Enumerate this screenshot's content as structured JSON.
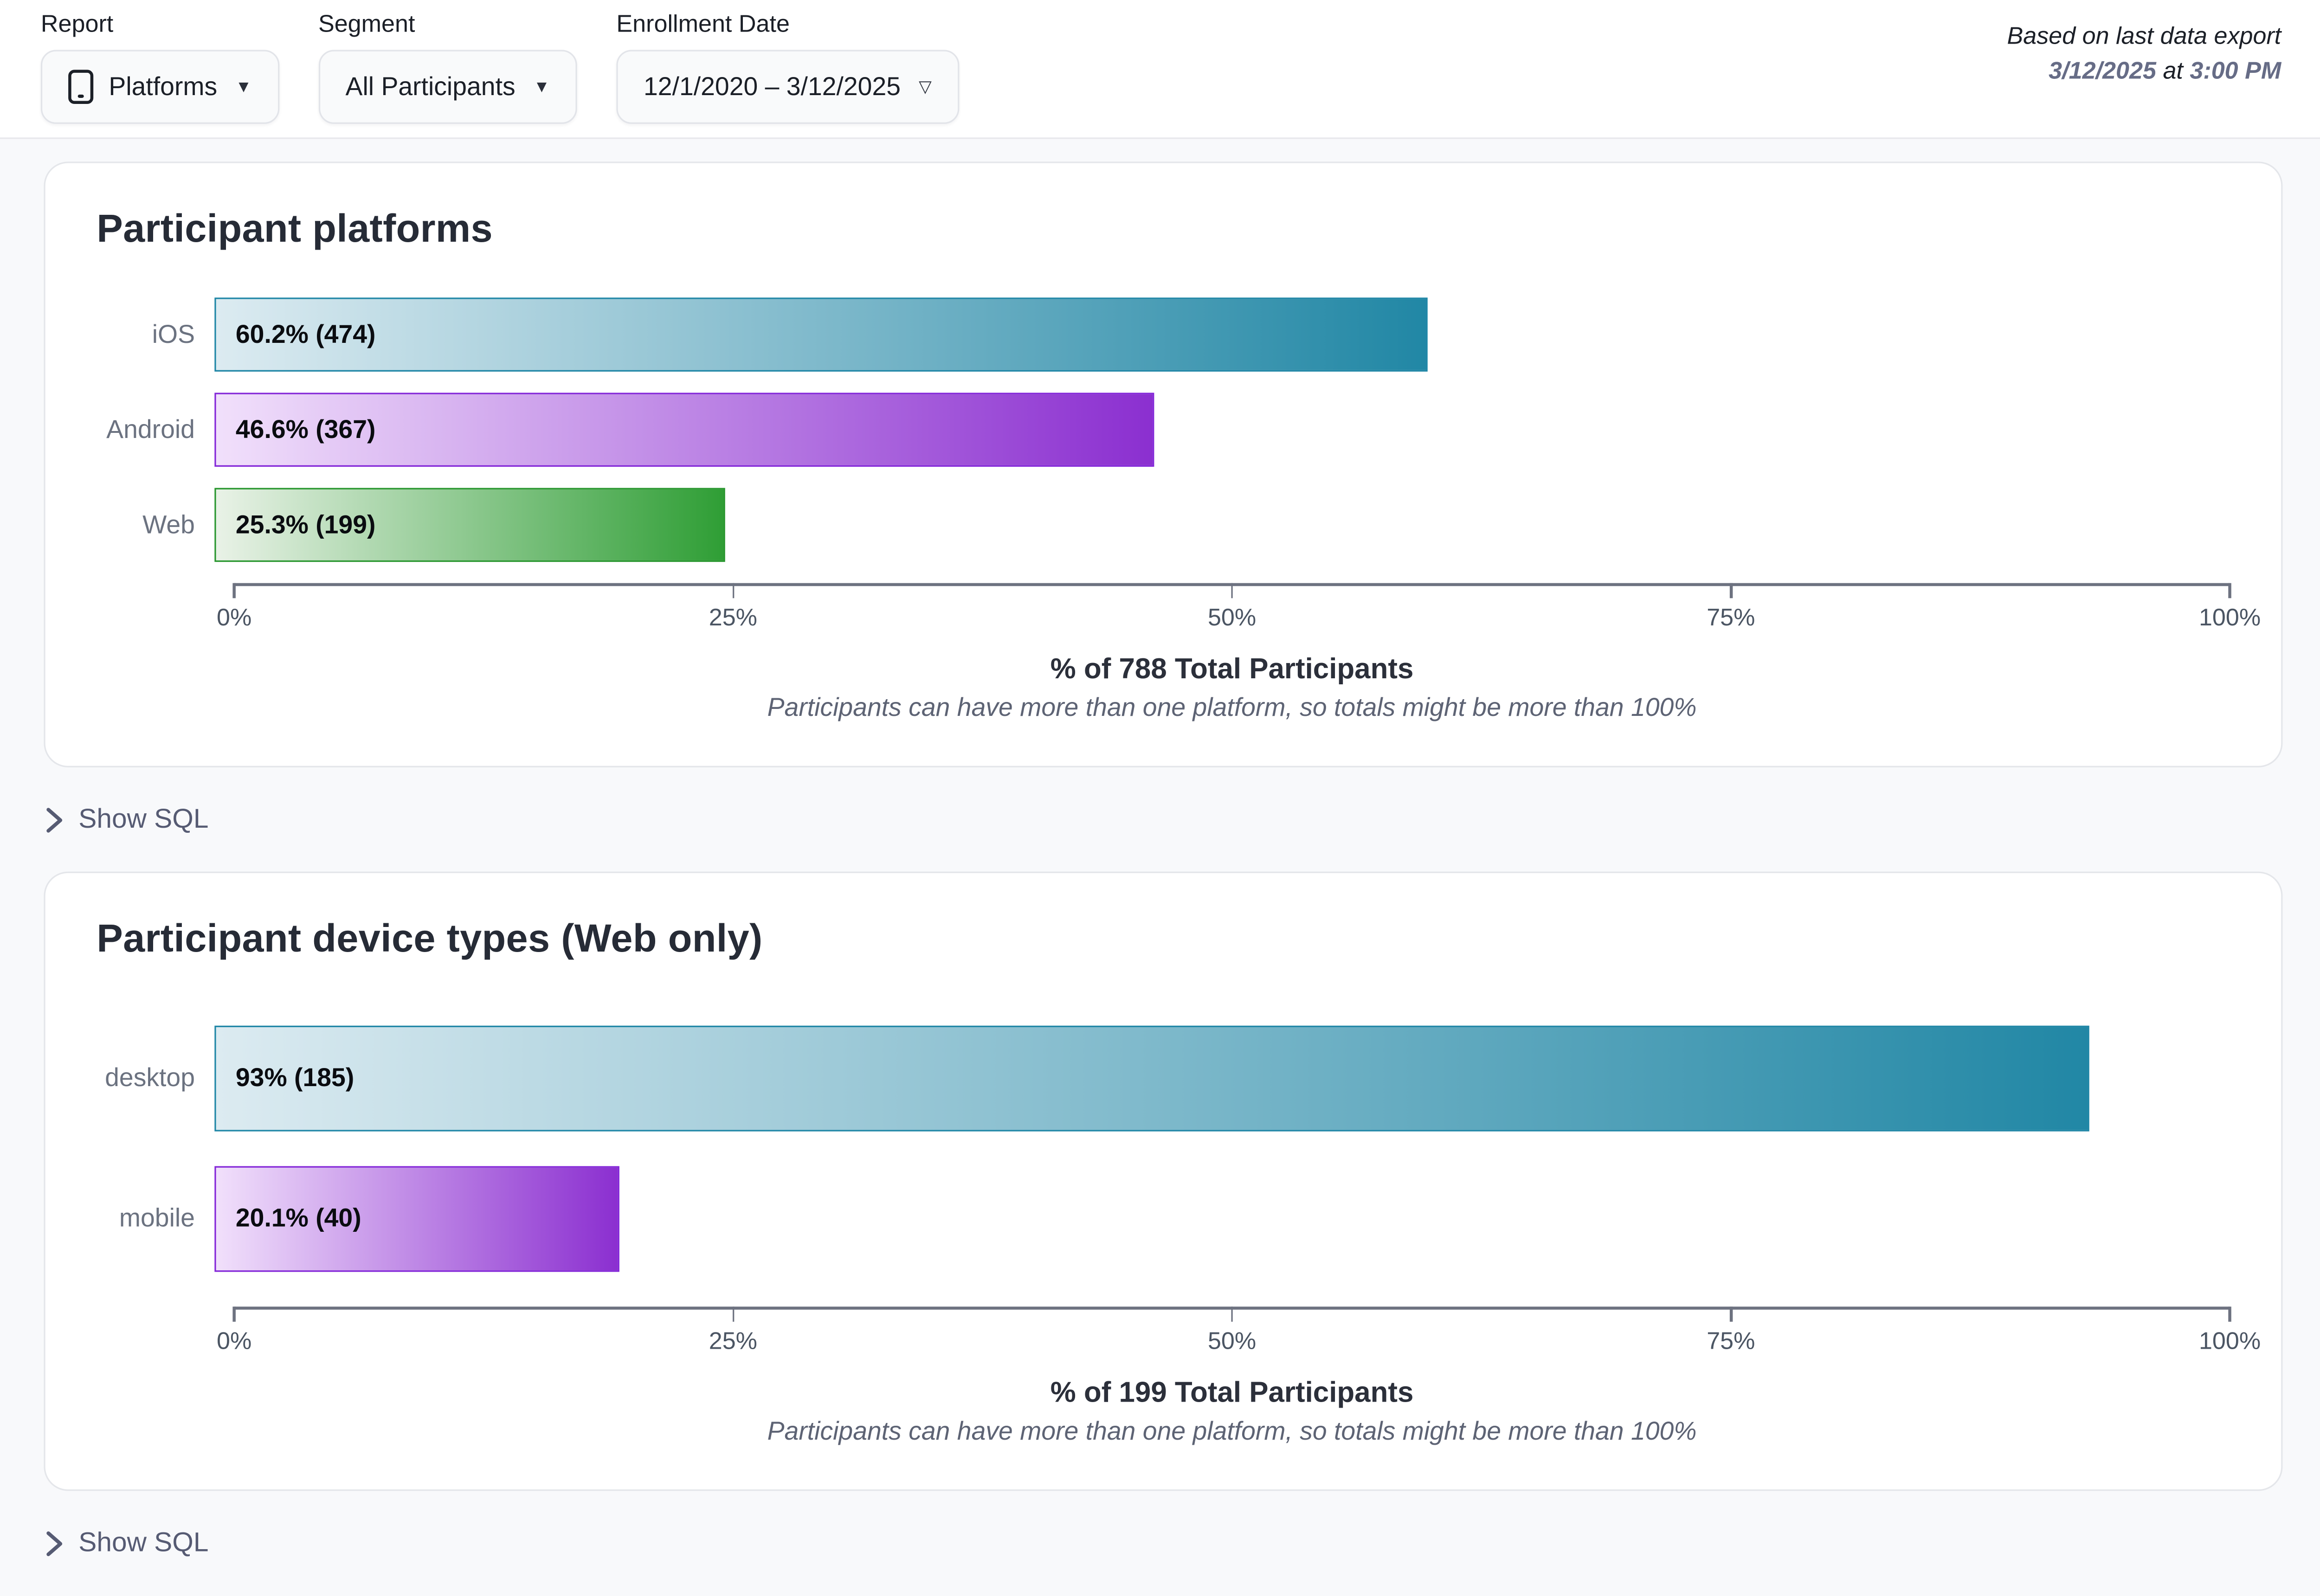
{
  "header": {
    "report_label": "Report",
    "report_value": "Platforms",
    "segment_label": "Segment",
    "segment_value": "All Participants",
    "date_label": "Enrollment Date",
    "date_value": "12/1/2020 – 3/12/2025",
    "export_line1": "Based on last data export",
    "export_date": "3/12/2025",
    "export_at": "at",
    "export_time": "3:00 PM"
  },
  "show_sql": {
    "label": "Show SQL"
  },
  "chart_data": [
    {
      "type": "bar",
      "orientation": "horizontal",
      "title": "Participant platforms",
      "categories": [
        "iOS",
        "Android",
        "Web"
      ],
      "values": [
        60.2,
        46.6,
        25.3
      ],
      "counts": [
        474,
        367,
        199
      ],
      "bar_labels": [
        "60.2% (474)",
        "46.6% (367)",
        "25.3% (199)"
      ],
      "colors": [
        {
          "start": "#dcebf1",
          "end": "#2187a5",
          "border": "#1f86a6"
        },
        {
          "start": "#f1e0fb",
          "end": "#8b2fd0",
          "border": "#8326d8"
        },
        {
          "start": "#e9f2e7",
          "end": "#2f9e35",
          "border": "#28962e"
        }
      ],
      "xlim": [
        0,
        100
      ],
      "x_ticks": [
        "0%",
        "25%",
        "50%",
        "75%",
        "100%"
      ],
      "grid": false,
      "xlabel": "% of 788 Total Participants",
      "note": "Participants can have more than one platform, so totals might be more than 100%"
    },
    {
      "type": "bar",
      "orientation": "horizontal",
      "title": "Participant device types (Web only)",
      "categories": [
        "desktop",
        "mobile"
      ],
      "values": [
        93,
        20.1
      ],
      "counts": [
        185,
        40
      ],
      "bar_labels": [
        "93% (185)",
        "20.1% (40)"
      ],
      "colors": [
        {
          "start": "#dcebf1",
          "end": "#2187a5",
          "border": "#1f86a6"
        },
        {
          "start": "#f1e0fb",
          "end": "#8b2fd0",
          "border": "#8326d8"
        }
      ],
      "xlim": [
        0,
        100
      ],
      "x_ticks": [
        "0%",
        "25%",
        "50%",
        "75%",
        "100%"
      ],
      "grid": false,
      "xlabel": "% of 199 Total Participants",
      "note": "Participants can have more than one platform, so totals might be more than 100%"
    }
  ]
}
